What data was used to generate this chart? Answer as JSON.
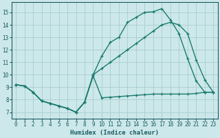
{
  "title": "",
  "xlabel": "Humidex (Indice chaleur)",
  "background_color": "#cce8ea",
  "grid_color": "#aaccce",
  "line_color": "#1a7a6e",
  "xlim": [
    -0.5,
    23.5
  ],
  "ylim": [
    6.5,
    15.8
  ],
  "xticks": [
    0,
    1,
    2,
    3,
    4,
    5,
    6,
    7,
    8,
    9,
    10,
    11,
    12,
    13,
    14,
    15,
    16,
    17,
    18,
    19,
    20,
    21,
    22,
    23
  ],
  "yticks": [
    7,
    8,
    9,
    10,
    11,
    12,
    13,
    14,
    15
  ],
  "line1_x": [
    0,
    1,
    2,
    3,
    4,
    5,
    6,
    7,
    8,
    9,
    10,
    11,
    12,
    13,
    14,
    15,
    16,
    17,
    18,
    19,
    20,
    21,
    22,
    23
  ],
  "line1_y": [
    9.2,
    9.1,
    8.6,
    7.9,
    7.7,
    7.5,
    7.3,
    7.0,
    7.8,
    9.9,
    8.15,
    8.2,
    8.25,
    8.3,
    8.35,
    8.4,
    8.45,
    8.45,
    8.45,
    8.45,
    8.45,
    8.5,
    8.6,
    8.6
  ],
  "line2_x": [
    0,
    1,
    2,
    3,
    4,
    5,
    6,
    7,
    8,
    9,
    10,
    11,
    12,
    13,
    14,
    15,
    16,
    17,
    18,
    19,
    20,
    21,
    22,
    23
  ],
  "line2_y": [
    9.2,
    9.1,
    8.6,
    7.9,
    7.7,
    7.5,
    7.3,
    7.0,
    7.8,
    10.0,
    11.5,
    12.6,
    13.0,
    14.2,
    14.6,
    15.0,
    15.05,
    15.3,
    14.4,
    13.3,
    11.3,
    9.5,
    8.6,
    8.6
  ],
  "line3_x": [
    0,
    1,
    2,
    3,
    4,
    5,
    6,
    7,
    8,
    9,
    10,
    11,
    12,
    13,
    14,
    15,
    16,
    17,
    18,
    19,
    20,
    21,
    22,
    23
  ],
  "line3_y": [
    9.2,
    9.1,
    8.6,
    7.9,
    7.7,
    7.5,
    7.3,
    7.0,
    7.8,
    10.0,
    10.5,
    11.0,
    11.5,
    12.0,
    12.5,
    13.0,
    13.5,
    14.0,
    14.2,
    14.0,
    13.3,
    11.2,
    9.6,
    8.6
  ]
}
